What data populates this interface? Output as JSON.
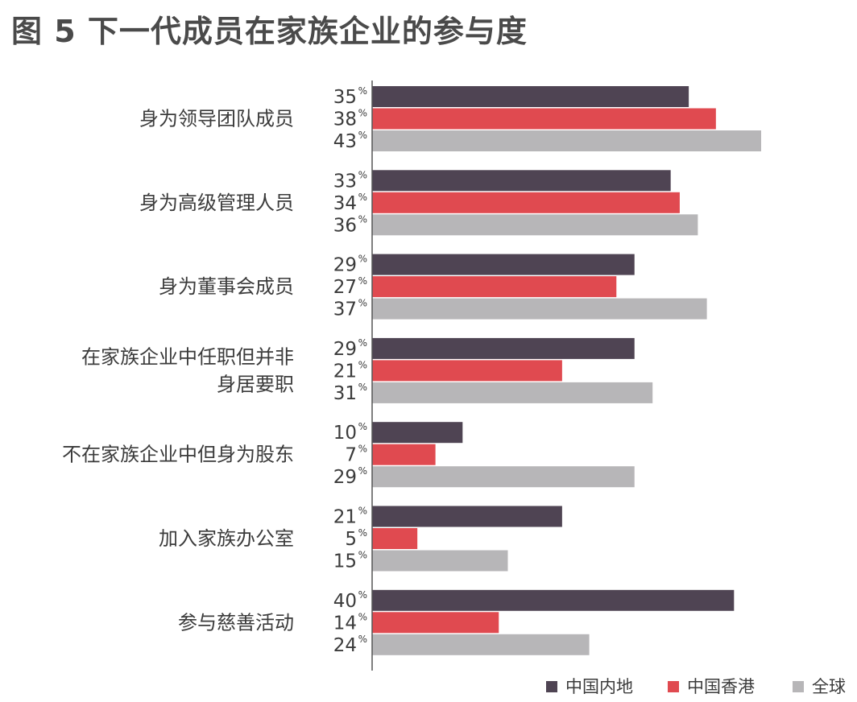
{
  "chart_data": {
    "type": "bar",
    "orientation": "horizontal",
    "title": "图 5 下一代成员在家族企业的参与度",
    "unit": "%",
    "categories": [
      [
        "身为领导团队成员"
      ],
      [
        "身为高级管理人员"
      ],
      [
        "身为董事会成员"
      ],
      [
        "在家族企业中任职但并非",
        "身居要职"
      ],
      [
        "不在家族企业中但身为股东"
      ],
      [
        "加入家族办公室"
      ],
      [
        "参与慈善活动"
      ]
    ],
    "series": [
      {
        "name": "中国内地",
        "color": "#4f4453",
        "values": [
          35,
          33,
          29,
          29,
          10,
          21,
          40
        ]
      },
      {
        "name": "中国香港",
        "color": "#e04a50",
        "values": [
          38,
          34,
          27,
          21,
          7,
          5,
          14
        ]
      },
      {
        "name": "全球",
        "color": "#b7b6b8",
        "values": [
          43,
          36,
          37,
          31,
          29,
          15,
          24
        ]
      }
    ],
    "xlim": [
      0,
      43
    ],
    "grid": false,
    "legend_position": "bottom-right"
  }
}
